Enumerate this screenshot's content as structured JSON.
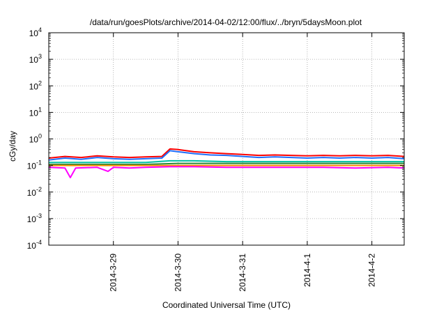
{
  "chart_data": {
    "type": "line",
    "title": "/data/run/goesPlots/archive/2014-04-02/12:00/flux/../bryn/5daysMoon.plot",
    "xlabel": "Coordinated Universal Time (UTC)",
    "ylabel": "cGy/day",
    "yscale": "log",
    "ylim": [
      0.0001,
      10000
    ],
    "xlim": [
      "2014-03-28 00:00",
      "2014-04-02 12:00"
    ],
    "grid": true,
    "x_ticks": [
      "2014-3-29",
      "2014-3-30",
      "2014-3-31",
      "2014-4-1",
      "2014-4-2"
    ],
    "y_ticks": [
      {
        "base": "10",
        "exp": "-4"
      },
      {
        "base": "10",
        "exp": "-3"
      },
      {
        "base": "10",
        "exp": "-2"
      },
      {
        "base": "10",
        "exp": "-1"
      },
      {
        "base": "10",
        "exp": "0"
      },
      {
        "base": "10",
        "exp": "1"
      },
      {
        "base": "10",
        "exp": "2"
      },
      {
        "base": "10",
        "exp": "3"
      },
      {
        "base": "10",
        "exp": "4"
      }
    ],
    "series": [
      {
        "color": "#ff0000",
        "values": [
          [
            "2014-03-28 00:00",
            0.19
          ],
          [
            "2014-03-28 06:00",
            0.22
          ],
          [
            "2014-03-28 12:00",
            0.2
          ],
          [
            "2014-03-28 18:00",
            0.23
          ],
          [
            "2014-03-29 00:00",
            0.21
          ],
          [
            "2014-03-29 06:00",
            0.2
          ],
          [
            "2014-03-29 12:00",
            0.21
          ],
          [
            "2014-03-29 18:00",
            0.22
          ],
          [
            "2014-03-29 21:00",
            0.42
          ],
          [
            "2014-03-30 00:00",
            0.4
          ],
          [
            "2014-03-30 06:00",
            0.33
          ],
          [
            "2014-03-30 12:00",
            0.3
          ],
          [
            "2014-03-30 18:00",
            0.28
          ],
          [
            "2014-03-31 00:00",
            0.26
          ],
          [
            "2014-03-31 06:00",
            0.24
          ],
          [
            "2014-03-31 12:00",
            0.25
          ],
          [
            "2014-03-31 18:00",
            0.24
          ],
          [
            "2014-04-01 00:00",
            0.23
          ],
          [
            "2014-04-01 06:00",
            0.24
          ],
          [
            "2014-04-01 12:00",
            0.23
          ],
          [
            "2014-04-01 18:00",
            0.24
          ],
          [
            "2014-04-02 00:00",
            0.23
          ],
          [
            "2014-04-02 06:00",
            0.24
          ],
          [
            "2014-04-02 12:00",
            0.22
          ]
        ]
      },
      {
        "color": "#1f6fff",
        "values": [
          [
            "2014-03-28 00:00",
            0.16
          ],
          [
            "2014-03-28 06:00",
            0.19
          ],
          [
            "2014-03-28 12:00",
            0.17
          ],
          [
            "2014-03-28 18:00",
            0.2
          ],
          [
            "2014-03-29 00:00",
            0.18
          ],
          [
            "2014-03-29 06:00",
            0.17
          ],
          [
            "2014-03-29 12:00",
            0.18
          ],
          [
            "2014-03-29 18:00",
            0.19
          ],
          [
            "2014-03-29 21:00",
            0.36
          ],
          [
            "2014-03-30 00:00",
            0.33
          ],
          [
            "2014-03-30 06:00",
            0.28
          ],
          [
            "2014-03-30 12:00",
            0.25
          ],
          [
            "2014-03-30 18:00",
            0.24
          ],
          [
            "2014-03-31 00:00",
            0.22
          ],
          [
            "2014-03-31 06:00",
            0.2
          ],
          [
            "2014-03-31 12:00",
            0.21
          ],
          [
            "2014-03-31 18:00",
            0.2
          ],
          [
            "2014-04-01 00:00",
            0.19
          ],
          [
            "2014-04-01 06:00",
            0.2
          ],
          [
            "2014-04-01 12:00",
            0.19
          ],
          [
            "2014-04-01 18:00",
            0.2
          ],
          [
            "2014-04-02 00:00",
            0.19
          ],
          [
            "2014-04-02 06:00",
            0.2
          ],
          [
            "2014-04-02 12:00",
            0.18
          ]
        ]
      },
      {
        "color": "#00c0a0",
        "values": [
          [
            "2014-03-28 00:00",
            0.13
          ],
          [
            "2014-03-28 12:00",
            0.13
          ],
          [
            "2014-03-29 00:00",
            0.13
          ],
          [
            "2014-03-29 12:00",
            0.13
          ],
          [
            "2014-03-29 21:00",
            0.15
          ],
          [
            "2014-03-30 06:00",
            0.15
          ],
          [
            "2014-03-30 18:00",
            0.14
          ],
          [
            "2014-03-31 06:00",
            0.14
          ],
          [
            "2014-03-31 18:00",
            0.14
          ],
          [
            "2014-04-01 06:00",
            0.14
          ],
          [
            "2014-04-01 18:00",
            0.14
          ],
          [
            "2014-04-02 06:00",
            0.14
          ],
          [
            "2014-04-02 12:00",
            0.14
          ]
        ]
      },
      {
        "color": "#2a8a3a",
        "values": [
          [
            "2014-03-28 00:00",
            0.11
          ],
          [
            "2014-03-28 12:00",
            0.11
          ],
          [
            "2014-03-29 00:00",
            0.11
          ],
          [
            "2014-03-29 12:00",
            0.11
          ],
          [
            "2014-03-30 00:00",
            0.12
          ],
          [
            "2014-03-30 12:00",
            0.12
          ],
          [
            "2014-03-31 00:00",
            0.12
          ],
          [
            "2014-03-31 12:00",
            0.12
          ],
          [
            "2014-04-01 00:00",
            0.12
          ],
          [
            "2014-04-01 12:00",
            0.12
          ],
          [
            "2014-04-02 00:00",
            0.12
          ],
          [
            "2014-04-02 12:00",
            0.12
          ]
        ]
      },
      {
        "color": "#ff8c00",
        "values": [
          [
            "2014-03-28 00:00",
            0.1
          ],
          [
            "2014-03-28 12:00",
            0.1
          ],
          [
            "2014-03-29 00:00",
            0.1
          ],
          [
            "2014-03-29 12:00",
            0.1
          ],
          [
            "2014-03-30 00:00",
            0.1
          ],
          [
            "2014-03-30 12:00",
            0.1
          ],
          [
            "2014-03-31 00:00",
            0.1
          ],
          [
            "2014-03-31 12:00",
            0.1
          ],
          [
            "2014-04-01 00:00",
            0.1
          ],
          [
            "2014-04-01 12:00",
            0.1
          ],
          [
            "2014-04-02 00:00",
            0.1
          ],
          [
            "2014-04-02 12:00",
            0.1
          ]
        ]
      },
      {
        "color": "#ff00ff",
        "values": [
          [
            "2014-03-28 00:00",
            0.085
          ],
          [
            "2014-03-28 06:00",
            0.08
          ],
          [
            "2014-03-28 08:00",
            0.035
          ],
          [
            "2014-03-28 10:00",
            0.08
          ],
          [
            "2014-03-28 18:00",
            0.085
          ],
          [
            "2014-03-28 22:00",
            0.06
          ],
          [
            "2014-03-29 00:00",
            0.085
          ],
          [
            "2014-03-29 06:00",
            0.08
          ],
          [
            "2014-03-29 12:00",
            0.085
          ],
          [
            "2014-03-29 21:00",
            0.09
          ],
          [
            "2014-03-30 06:00",
            0.09
          ],
          [
            "2014-03-30 18:00",
            0.085
          ],
          [
            "2014-03-31 06:00",
            0.085
          ],
          [
            "2014-03-31 18:00",
            0.085
          ],
          [
            "2014-04-01 06:00",
            0.085
          ],
          [
            "2014-04-01 18:00",
            0.08
          ],
          [
            "2014-04-02 06:00",
            0.085
          ],
          [
            "2014-04-02 12:00",
            0.08
          ]
        ]
      }
    ]
  }
}
